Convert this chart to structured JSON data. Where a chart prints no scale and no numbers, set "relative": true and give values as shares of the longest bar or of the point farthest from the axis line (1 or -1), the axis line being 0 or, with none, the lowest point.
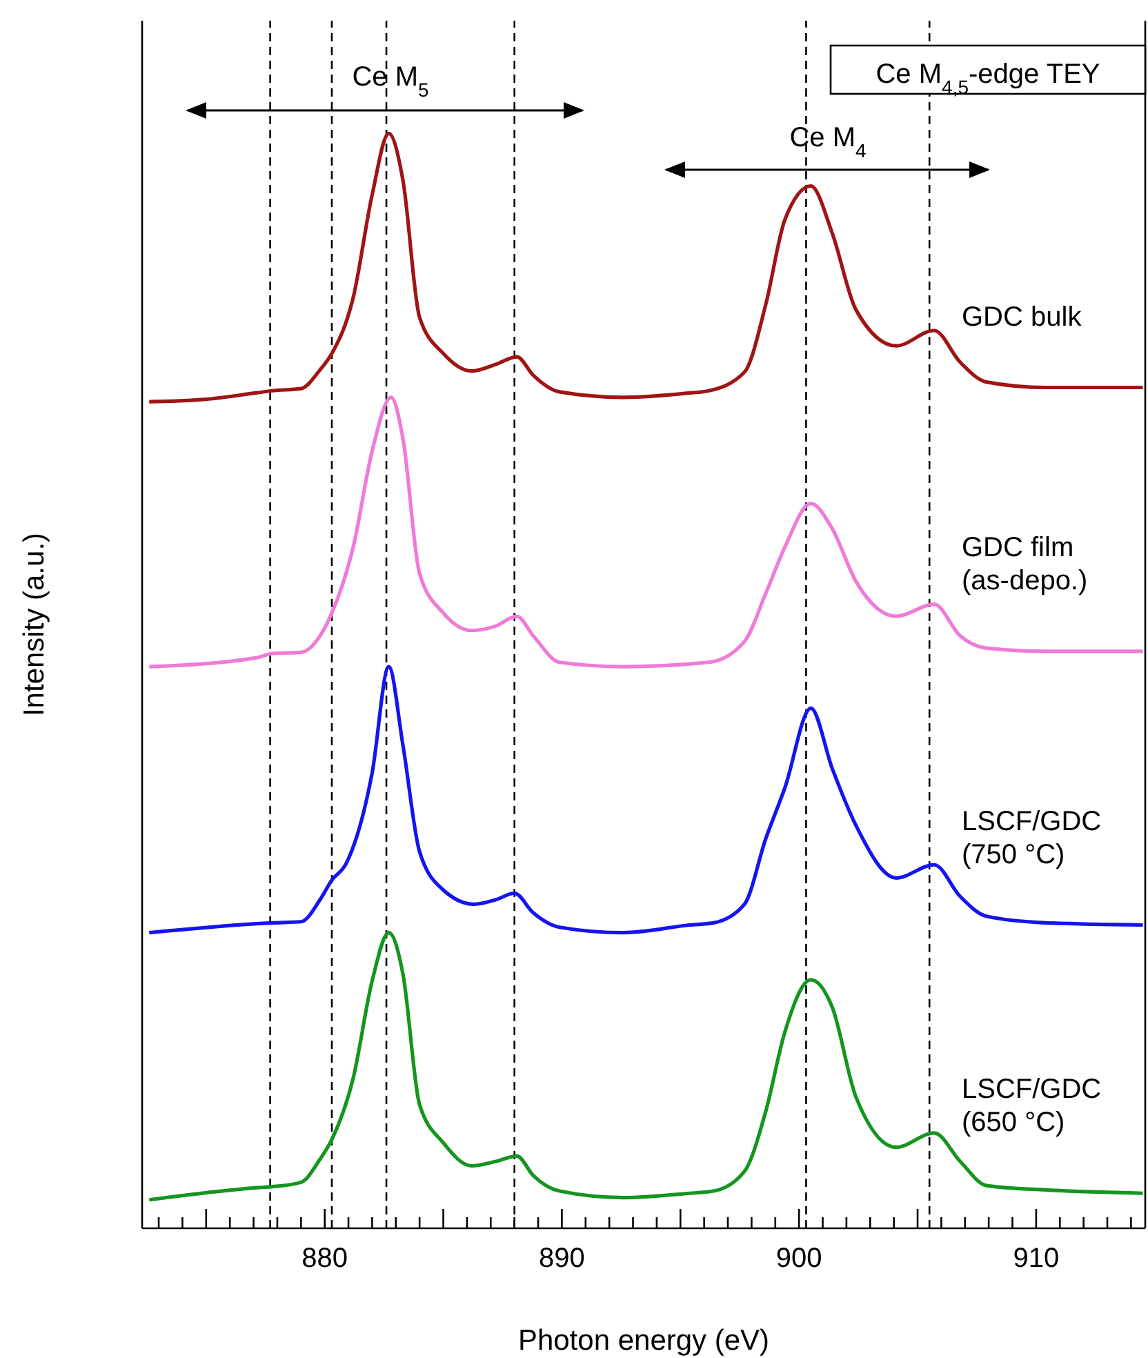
{
  "chart_data": {
    "type": "line",
    "relative": true,
    "xlabel": "Photon energy (eV)",
    "ylabel": "Intensity (a.u.)",
    "xlim": [
      872.3,
      914.6
    ],
    "xticks": [
      {
        "value": 873,
        "label": null
      },
      {
        "value": 874,
        "label": null
      },
      {
        "value": 875,
        "label": null
      },
      {
        "value": 876,
        "label": null
      },
      {
        "value": 877,
        "label": null
      },
      {
        "value": 878,
        "label": null
      },
      {
        "value": 879,
        "label": null
      },
      880,
      {
        "value": 881,
        "label": null
      },
      {
        "value": 882,
        "label": null
      },
      {
        "value": 883,
        "label": null
      },
      {
        "value": 884,
        "label": null
      },
      {
        "value": 885,
        "label": null
      },
      {
        "value": 886,
        "label": null
      },
      {
        "value": 887,
        "label": null
      },
      {
        "value": 888,
        "label": null
      },
      {
        "value": 889,
        "label": null
      },
      890,
      {
        "value": 891,
        "label": null
      },
      {
        "value": 892,
        "label": null
      },
      {
        "value": 893,
        "label": null
      },
      {
        "value": 894,
        "label": null
      },
      {
        "value": 895,
        "label": null
      },
      {
        "value": 896,
        "label": null
      },
      {
        "value": 897,
        "label": null
      },
      {
        "value": 898,
        "label": null
      },
      {
        "value": 899,
        "label": null
      },
      900,
      {
        "value": 901,
        "label": null
      },
      {
        "value": 902,
        "label": null
      },
      {
        "value": 903,
        "label": null
      },
      {
        "value": 904,
        "label": null
      },
      {
        "value": 905,
        "label": null
      },
      {
        "value": 906,
        "label": null
      },
      {
        "value": 907,
        "label": null
      },
      {
        "value": 908,
        "label": null
      },
      {
        "value": 909,
        "label": null
      },
      910,
      {
        "value": 911,
        "label": null
      },
      {
        "value": 912,
        "label": null
      },
      {
        "value": 913,
        "label": null
      },
      {
        "value": 914,
        "label": null
      }
    ],
    "marker": "none",
    "line_style": "solid",
    "annotations": [
      "Ce M$_{4,5}$-edge TEY",
      "Ce M$_{5}$",
      "Ce M$_{4}$"
    ],
    "ref_lines": [
      {
        "axis": "x",
        "value": 877.7,
        "color": "#000000",
        "line_style": "dashed"
      },
      {
        "axis": "x",
        "value": 880.3,
        "color": "#000000",
        "line_style": "dashed"
      },
      {
        "axis": "x",
        "value": 882.6,
        "color": "#000000",
        "line_style": "dashed"
      },
      {
        "axis": "x",
        "value": 888.0,
        "color": "#000000",
        "line_style": "dashed"
      },
      {
        "axis": "x",
        "value": 900.3,
        "color": "#000000",
        "line_style": "dashed"
      },
      {
        "axis": "x",
        "value": 905.5,
        "color": "#000000",
        "line_style": "dashed"
      }
    ],
    "series": [
      {
        "name": "GDC bulk",
        "color": "#a01414",
        "x": [
          872.6,
          874.9,
          877.1,
          877.8,
          879.0,
          879.8,
          880.3,
          881.2,
          882.0,
          882.7,
          883.3,
          884.0,
          885.0,
          886.2,
          887.2,
          888.1,
          888.8,
          889.9,
          892.6,
          895.4,
          896.2,
          897.7,
          898.6,
          899.4,
          900.5,
          901.4,
          902.4,
          904.1,
          905.7,
          906.8,
          907.9,
          910.4,
          914.5
        ],
        "values": [
          0.755,
          0.757,
          0.763,
          0.765,
          0.767,
          0.784,
          0.799,
          0.85,
          0.944,
          1.0,
          0.957,
          0.832,
          0.799,
          0.783,
          0.789,
          0.796,
          0.779,
          0.764,
          0.759,
          0.763,
          0.765,
          0.782,
          0.844,
          0.921,
          0.952,
          0.909,
          0.839,
          0.806,
          0.82,
          0.791,
          0.773,
          0.768,
          0.768
        ]
      },
      {
        "name": "GDC film\n(as-depo.)",
        "color": "#f07ad8",
        "x": [
          872.6,
          877.1,
          877.8,
          879.0,
          879.8,
          880.3,
          881.2,
          882.0,
          882.8,
          883.3,
          884.0,
          885.0,
          886.2,
          887.2,
          888.1,
          888.8,
          889.9,
          892.6,
          896.2,
          897.7,
          898.6,
          899.4,
          900.5,
          901.4,
          902.4,
          904.1,
          905.7,
          906.8,
          907.9,
          910.4,
          914.5
        ],
        "values": [
          0.513,
          0.521,
          0.525,
          0.526,
          0.541,
          0.562,
          0.622,
          0.71,
          0.759,
          0.721,
          0.598,
          0.562,
          0.546,
          0.55,
          0.559,
          0.541,
          0.517,
          0.513,
          0.517,
          0.536,
          0.58,
          0.622,
          0.662,
          0.639,
          0.591,
          0.559,
          0.57,
          0.541,
          0.53,
          0.527,
          0.527
        ]
      },
      {
        "name": "LSCF/GDC\n(750 °C)",
        "color": "#1414f0",
        "x": [
          872.6,
          877.8,
          879.0,
          879.8,
          880.3,
          880.9,
          882.0,
          882.7,
          883.3,
          884.0,
          885.0,
          886.3,
          887.2,
          888.0,
          888.8,
          889.9,
          892.6,
          895.4,
          896.4,
          897.7,
          898.6,
          899.4,
          900.5,
          901.4,
          902.4,
          904.1,
          905.7,
          906.8,
          907.9,
          910.4,
          914.5
        ],
        "values": [
          0.27,
          0.279,
          0.28,
          0.3,
          0.318,
          0.333,
          0.416,
          0.513,
          0.441,
          0.344,
          0.309,
          0.296,
          0.3,
          0.306,
          0.288,
          0.275,
          0.27,
          0.277,
          0.279,
          0.296,
          0.356,
          0.402,
          0.475,
          0.42,
          0.368,
          0.32,
          0.332,
          0.303,
          0.285,
          0.279,
          0.277
        ]
      },
      {
        "name": "LSCF/GDC\n(650 °C)",
        "color": "#14961e",
        "x": [
          872.6,
          877.1,
          877.8,
          879.0,
          879.8,
          880.3,
          881.2,
          882.0,
          882.7,
          883.3,
          884.0,
          885.0,
          886.2,
          887.2,
          888.1,
          888.8,
          889.9,
          892.6,
          895.4,
          896.4,
          897.7,
          898.6,
          899.4,
          900.5,
          901.4,
          902.4,
          904.1,
          905.7,
          906.8,
          907.9,
          910.4,
          914.5
        ],
        "values": [
          0.026,
          0.037,
          0.038,
          0.042,
          0.063,
          0.081,
          0.137,
          0.226,
          0.27,
          0.232,
          0.113,
          0.078,
          0.057,
          0.061,
          0.066,
          0.048,
          0.034,
          0.028,
          0.032,
          0.034,
          0.052,
          0.107,
          0.179,
          0.227,
          0.202,
          0.12,
          0.074,
          0.087,
          0.061,
          0.039,
          0.035,
          0.032
        ]
      }
    ]
  }
}
